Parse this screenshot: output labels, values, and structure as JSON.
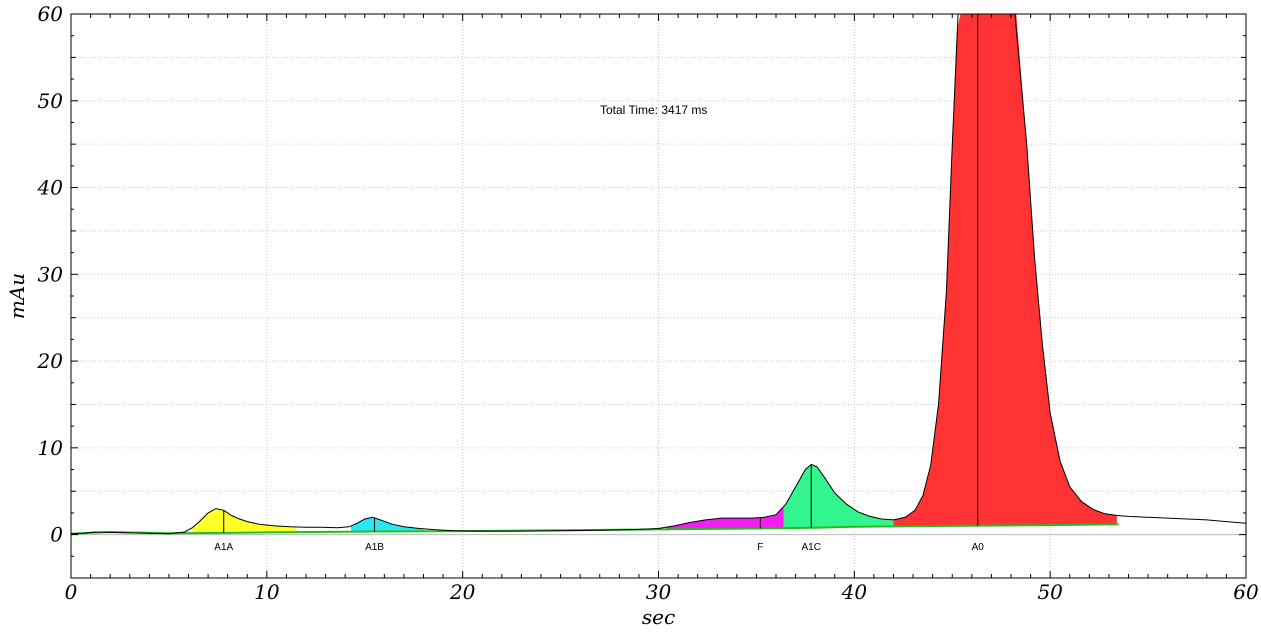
{
  "chart_data": {
    "type": "area",
    "xlabel": "sec",
    "ylabel": "mAu",
    "xlim": [
      0,
      60
    ],
    "ylim": [
      -5,
      60
    ],
    "x_ticks": [
      0,
      10,
      20,
      30,
      40,
      50,
      60
    ],
    "y_ticks": [
      0,
      10,
      20,
      30,
      40,
      50,
      60
    ],
    "grid": true,
    "annotation": "Total Time: 3417 ms",
    "colors": {
      "trace": "#000000",
      "baseline": "#22c01e",
      "axis_zero": "#bdbdbd",
      "grid": "#c8c8c8"
    },
    "trace": {
      "x": [
        0,
        0.6,
        1.2,
        2,
        3,
        4,
        5,
        5.8,
        6.2,
        6.6,
        7,
        7.4,
        7.8,
        8.2,
        8.6,
        9,
        9.6,
        10.4,
        11.2,
        12,
        12.8,
        13.6,
        14.2,
        14.6,
        15,
        15.4,
        15.8,
        16.4,
        17,
        17.8,
        18.6,
        19.6,
        21,
        23,
        25,
        27,
        29,
        30,
        30.8,
        31.6,
        32.4,
        33.2,
        34,
        34.8,
        35.4,
        36,
        36.5,
        37,
        37.5,
        37.8,
        38.1,
        38.5,
        39,
        39.6,
        40.2,
        40.8,
        41.4,
        42,
        42.6,
        43.1,
        43.5,
        43.9,
        44.3,
        44.7,
        45,
        45.3,
        46.2,
        47.2,
        48.2,
        48.8,
        49.2,
        49.6,
        50,
        50.5,
        51,
        51.6,
        52.2,
        52.8,
        53.4,
        54,
        55,
        56,
        57,
        58,
        59,
        60
      ],
      "y": [
        0.1,
        0.15,
        0.3,
        0.25,
        0.2,
        0.15,
        0.1,
        0.3,
        0.8,
        1.6,
        2.5,
        3.0,
        2.8,
        2.2,
        1.8,
        1.5,
        1.2,
        1.0,
        0.9,
        0.85,
        0.85,
        0.8,
        0.9,
        1.3,
        1.8,
        2.0,
        1.7,
        1.2,
        0.9,
        0.7,
        0.55,
        0.45,
        0.4,
        0.4,
        0.45,
        0.5,
        0.6,
        0.7,
        1.0,
        1.4,
        1.7,
        1.9,
        1.9,
        1.9,
        2.0,
        2.3,
        3.5,
        5.5,
        7.5,
        8.1,
        7.8,
        6.5,
        4.8,
        3.5,
        2.6,
        2.1,
        1.8,
        1.7,
        2.0,
        2.8,
        4.5,
        8.0,
        15,
        28,
        45,
        62,
        62,
        62,
        62,
        45,
        32,
        22,
        14,
        8.5,
        5.5,
        3.8,
        2.9,
        2.4,
        2.2,
        2.1,
        2.0,
        1.9,
        1.8,
        1.7,
        1.5,
        1.3
      ]
    },
    "baseline": {
      "x": [
        0,
        2,
        5,
        8,
        10,
        15,
        20,
        25,
        30,
        35,
        38,
        40,
        42,
        45,
        50,
        53.5
      ],
      "y": [
        0.1,
        0.3,
        0.15,
        0.2,
        0.25,
        0.35,
        0.4,
        0.5,
        0.6,
        0.7,
        0.8,
        0.9,
        0.95,
        1.0,
        1.1,
        1.2
      ]
    },
    "peaks": [
      {
        "name": "A1A",
        "apex": 7.8,
        "start": 6.2,
        "end": 11.5,
        "color": "#ffff2a"
      },
      {
        "name": "A1B",
        "apex": 15.5,
        "start": 14.3,
        "end": 18.0,
        "color": "#2be5f2"
      },
      {
        "name": "F",
        "apex": 35.2,
        "start": 30.4,
        "end": 36.4,
        "color": "#f01ff0"
      },
      {
        "name": "A1C",
        "apex": 37.8,
        "start": 36.4,
        "end": 42.0,
        "color": "#33f58e"
      },
      {
        "name": "A0",
        "apex": 46.3,
        "start": 42.0,
        "end": 53.4,
        "color": "#ff3333"
      }
    ]
  }
}
